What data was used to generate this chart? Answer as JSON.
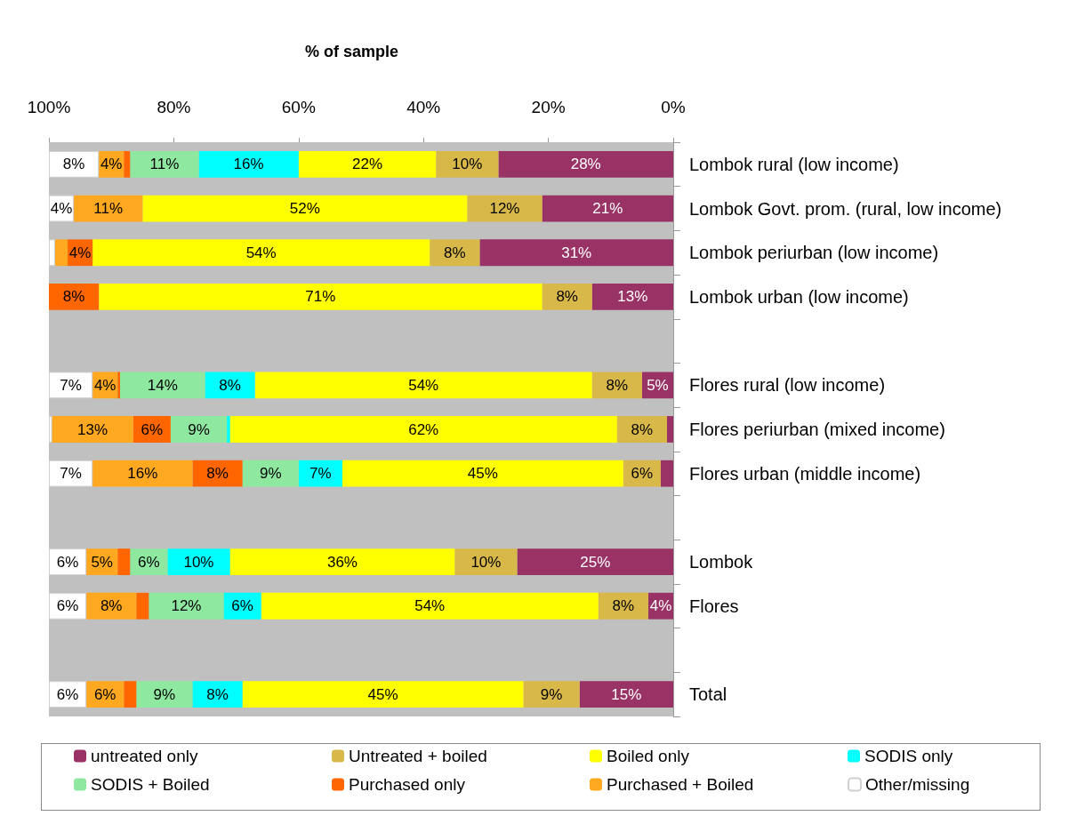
{
  "chart_data": {
    "type": "bar",
    "orientation": "horizontal",
    "stacked": true,
    "title": "% of sample",
    "categories": [
      "Lombok rural (low income)",
      "Lombok Govt. prom. (rural, low income)",
      "Lombok periurban (low income)",
      "Lombok urban (low income)",
      null,
      "Flores rural (low income)",
      "Flores periurban (mixed income)",
      "Flores urban (middle income)",
      null,
      "Lombok",
      "Flores",
      null,
      "Total"
    ],
    "series": [
      {
        "name": "untreated only",
        "color": "#993366",
        "values": [
          28,
          21,
          31,
          13,
          null,
          5,
          1,
          2,
          null,
          25,
          4,
          null,
          15
        ],
        "value_labels": [
          "28%",
          "21%",
          "31%",
          "13%",
          null,
          "5%",
          null,
          null,
          null,
          "25%",
          "4%",
          null,
          "15%"
        ]
      },
      {
        "name": "Untreated + boiled",
        "color": "#d9b84a",
        "values": [
          10,
          12,
          8,
          8,
          null,
          8,
          8,
          6,
          null,
          10,
          8,
          null,
          9
        ],
        "value_labels": [
          "10%",
          "12%",
          "8%",
          "8%",
          null,
          "8%",
          "8%",
          "6%",
          null,
          "10%",
          "8%",
          null,
          "9%"
        ]
      },
      {
        "name": "Boiled only",
        "color": "#ffff00",
        "values": [
          22,
          52,
          54,
          71,
          null,
          54,
          62,
          45,
          null,
          36,
          54,
          null,
          45
        ],
        "value_labels": [
          "22%",
          "52%",
          "54%",
          "71%",
          null,
          "54%",
          "62%",
          "45%",
          null,
          "36%",
          "54%",
          null,
          "45%"
        ]
      },
      {
        "name": "SODIS only",
        "color": "#00ffff",
        "values": [
          16,
          null,
          null,
          null,
          null,
          8,
          0.5,
          7,
          null,
          10,
          6,
          null,
          8
        ],
        "value_labels": [
          "16%",
          null,
          null,
          null,
          null,
          "8%",
          null,
          "7%",
          null,
          "10%",
          "6%",
          null,
          "8%"
        ]
      },
      {
        "name": "SODIS + Boiled",
        "color": "#8fe8a0",
        "values": [
          11,
          null,
          null,
          null,
          null,
          13.6,
          9,
          9,
          null,
          6,
          12,
          null,
          9
        ],
        "value_labels": [
          "11%",
          null,
          null,
          null,
          null,
          "14%",
          "9%",
          "9%",
          null,
          "6%",
          "12%",
          null,
          "9%"
        ]
      },
      {
        "name": "Purchased only",
        "color": "#ff6600",
        "values": [
          1,
          null,
          4,
          8,
          null,
          0.4,
          6,
          8,
          null,
          2,
          2,
          null,
          2
        ],
        "value_labels": [
          null,
          null,
          "4%",
          "8%",
          null,
          null,
          "6%",
          "8%",
          null,
          null,
          null,
          null,
          null
        ]
      },
      {
        "name": "Purchased + Boiled",
        "color": "#ffa820",
        "values": [
          4,
          11,
          2,
          null,
          null,
          4,
          13,
          16,
          null,
          5,
          8,
          null,
          6
        ],
        "value_labels": [
          "4%",
          "11%",
          null,
          null,
          null,
          "4%",
          "13%",
          "16%",
          null,
          "5%",
          "8%",
          null,
          "6%"
        ]
      },
      {
        "name": "Other/missing",
        "color": "#ffffff",
        "values": [
          8,
          4,
          1,
          null,
          null,
          7,
          0.5,
          7,
          null,
          6,
          6,
          null,
          6
        ],
        "value_labels": [
          "8%",
          "4%",
          null,
          null,
          null,
          "7%",
          null,
          "7%",
          null,
          "6%",
          "6%",
          null,
          "6%"
        ]
      }
    ],
    "xlim": [
      100,
      0
    ],
    "xticks": [
      {
        "value": 100,
        "label": "100%"
      },
      {
        "value": 80,
        "label": "80%"
      },
      {
        "value": 60,
        "label": "60%"
      },
      {
        "value": 40,
        "label": "40%"
      },
      {
        "value": 20,
        "label": "20%"
      },
      {
        "value": 0,
        "label": "0%"
      }
    ],
    "legend": "bottom",
    "grid": false
  }
}
